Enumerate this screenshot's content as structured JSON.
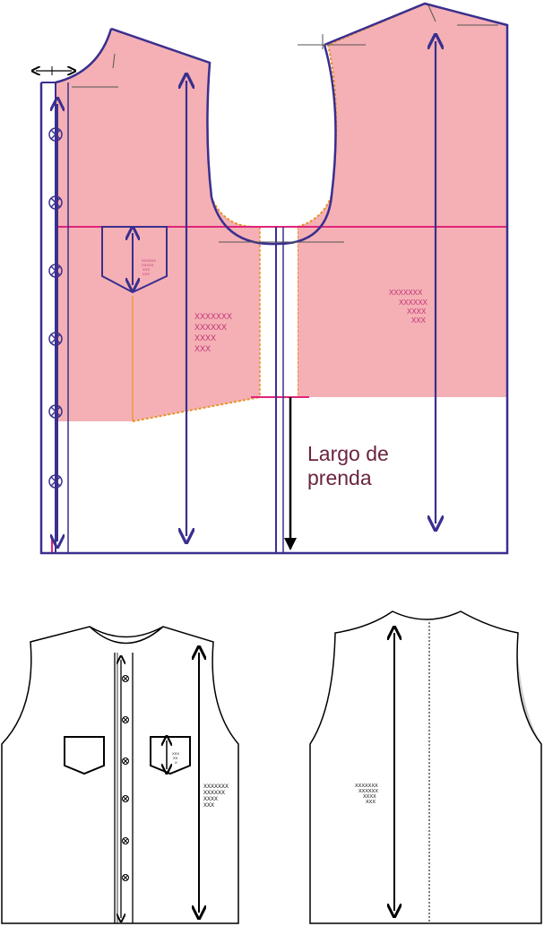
{
  "pattern": {
    "length_label_line1": "Largo de",
    "length_label_line2": "prenda",
    "front_grain_marks": [
      "XXXXXXX",
      "XXXXXX",
      "XXXX",
      "XXX"
    ],
    "back_grain_marks": [
      "XXXXXXX",
      "XXXXXX",
      "XXXX",
      "XXX"
    ],
    "pocket_grain_marks": [
      "XXXXXX",
      "XXXXX",
      "XXX",
      "XXX"
    ]
  },
  "front_view": {
    "grain_marks": [
      "XXXXXXX",
      "XXXXXX",
      "XXXX",
      "XXX"
    ],
    "pocket_grain_marks": [
      "XXX",
      "XX",
      "X"
    ]
  },
  "back_view": {
    "grain_marks": [
      "XXXXXXX",
      "XXXXXX",
      "XXXX",
      "XXX"
    ]
  },
  "colors": {
    "fill": "#f4b0b4",
    "outline": "#3a2f8f",
    "seam": "#e8922a",
    "guide": "#e0247a",
    "label": "#6b2440",
    "grain_text": "#c02f7a"
  }
}
